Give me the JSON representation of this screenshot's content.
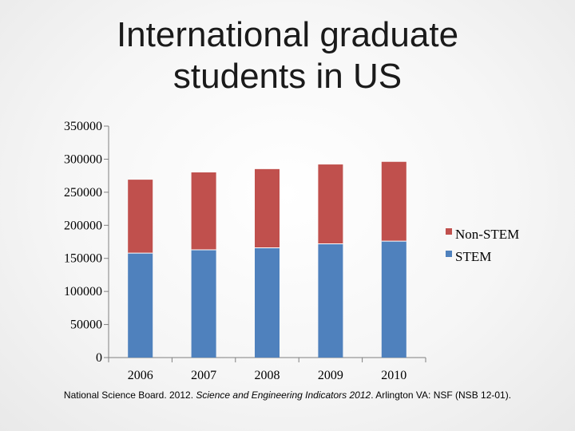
{
  "title_lines": [
    "International graduate",
    "students in US"
  ],
  "source": {
    "prefix": "National Science Board. 2012. ",
    "italic": "Science and Engineering Indicators 2012",
    "suffix": ". Arlington VA: NSF (NSB 12-01)."
  },
  "chart_data": {
    "type": "bar",
    "stacked": true,
    "categories": [
      "2006",
      "2007",
      "2008",
      "2009",
      "2010"
    ],
    "series": [
      {
        "name": "STEM",
        "color": "#4f81bd",
        "values": [
          158000,
          163000,
          166000,
          172000,
          176000
        ]
      },
      {
        "name": "Non-STEM",
        "color": "#c0504d",
        "values": [
          111000,
          117000,
          119000,
          120000,
          120000
        ]
      }
    ],
    "yticks": [
      "0",
      "50000",
      "100000",
      "150000",
      "200000",
      "250000",
      "300000",
      "350000"
    ],
    "ylim": [
      0,
      350000
    ],
    "grid": false,
    "legend_position": "right",
    "legend_order": [
      "Non-STEM",
      "STEM"
    ]
  }
}
